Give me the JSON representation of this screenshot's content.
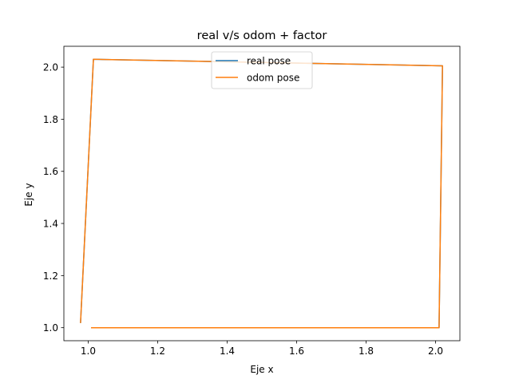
{
  "chart_data": {
    "type": "line",
    "title": "real v/s odom + factor",
    "xlabel": "Eje x",
    "ylabel": "Eje y",
    "xlim": [
      0.93,
      2.07
    ],
    "ylim": [
      0.95,
      2.08
    ],
    "xticks": [
      1.0,
      1.2,
      1.4,
      1.6,
      1.8,
      2.0
    ],
    "xtick_labels": [
      "1.0",
      "1.2",
      "1.4",
      "1.6",
      "1.8",
      "2.0"
    ],
    "yticks": [
      1.0,
      1.2,
      1.4,
      1.6,
      1.8,
      2.0
    ],
    "ytick_labels": [
      "1.0",
      "1.2",
      "1.4",
      "1.6",
      "1.8",
      "2.0"
    ],
    "grid": false,
    "legend_position": "upper center",
    "series": [
      {
        "name": "real pose",
        "color": "#1f77b4",
        "x": [
          1.01,
          2.01,
          2.02,
          1.015,
          0.978
        ],
        "y": [
          1.0,
          1.0,
          2.005,
          2.03,
          1.02
        ]
      },
      {
        "name": "odom pose",
        "color": "#ff7f0e",
        "x": [
          1.01,
          2.01,
          2.02,
          1.015,
          0.978
        ],
        "y": [
          1.0,
          1.0,
          2.005,
          2.03,
          1.02
        ]
      }
    ]
  }
}
